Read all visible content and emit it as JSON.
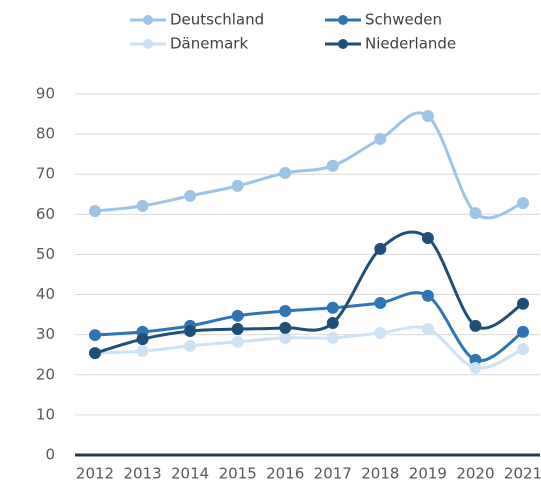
{
  "chart_data": {
    "type": "line",
    "categories": [
      "2012",
      "2013",
      "2014",
      "2015",
      "2016",
      "2017",
      "2018",
      "2019",
      "2020",
      "2021"
    ],
    "series": [
      {
        "name": "Deutschland",
        "color": "#9dc3e6",
        "values": [
          60.8,
          62.1,
          64.6,
          67.1,
          70.3,
          72.1,
          78.8,
          84.5,
          60.3,
          62.8
        ]
      },
      {
        "name": "Schweden",
        "color": "#2e75b6",
        "values": [
          29.9,
          30.7,
          32.2,
          34.7,
          35.9,
          36.7,
          37.9,
          39.7,
          23.7,
          30.7
        ]
      },
      {
        "name": "Dänemark",
        "color": "#cfe2f3",
        "values": [
          25.4,
          25.9,
          27.2,
          28.2,
          29.2,
          29.2,
          30.4,
          31.4,
          21.7,
          26.4
        ]
      },
      {
        "name": "Niederlande",
        "color": "#1f4e79",
        "values": [
          25.4,
          28.9,
          30.9,
          31.4,
          31.7,
          32.9,
          51.4,
          54.1,
          32.2,
          37.7
        ]
      }
    ],
    "ylim": [
      0,
      90
    ],
    "yticks": [
      0,
      10,
      20,
      30,
      40,
      50,
      60,
      70,
      80,
      90
    ],
    "grid": true
  }
}
